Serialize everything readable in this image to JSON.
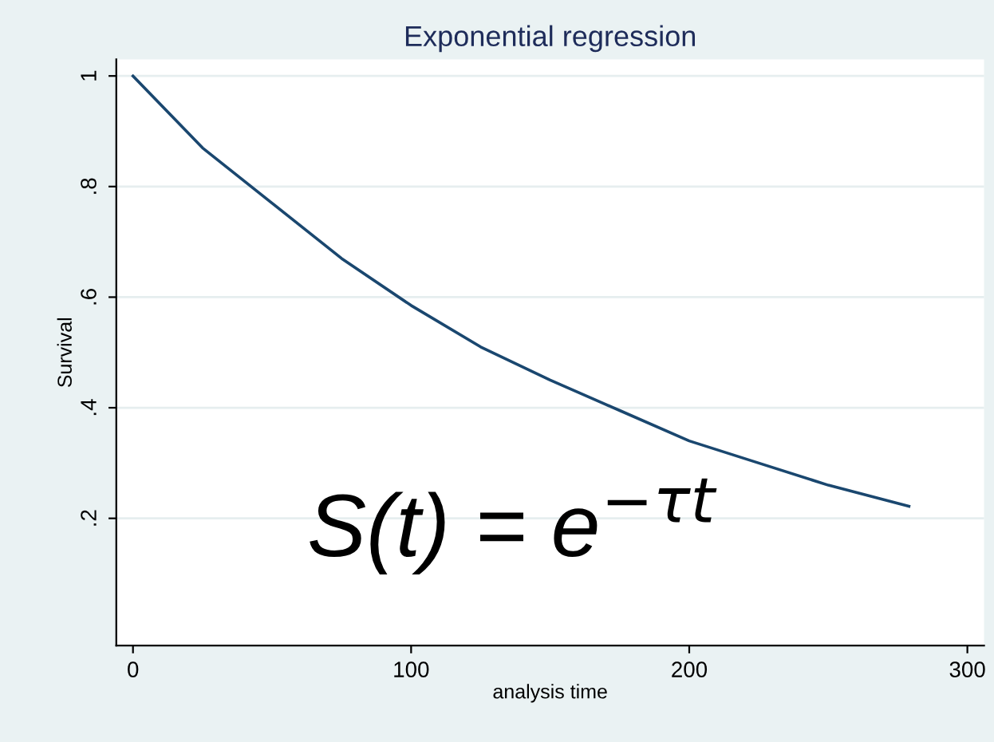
{
  "chart_data": {
    "type": "line",
    "title": "Exponential regression",
    "xlabel": "analysis time",
    "ylabel": "Survival",
    "x": [
      0,
      25,
      50,
      75,
      100,
      125,
      150,
      175,
      200,
      225,
      250,
      279
    ],
    "series": [
      {
        "color": "#1a476f",
        "values": [
          1.0,
          0.87,
          0.77,
          0.67,
          0.585,
          0.51,
          0.45,
          0.395,
          0.34,
          0.3,
          0.26,
          0.222
        ]
      }
    ],
    "xlim": [
      -6,
      306
    ],
    "xticks": [
      0,
      100,
      200,
      300
    ],
    "ylim": [
      -0.03,
      1.03
    ],
    "yticks": [
      {
        "value": 0.2,
        "label": ".2"
      },
      {
        "value": 0.4,
        "label": ".4"
      },
      {
        "value": 0.6,
        "label": ".6"
      },
      {
        "value": 0.8,
        "label": ".8"
      },
      {
        "value": 1,
        "label": "1"
      }
    ],
    "grid": "y",
    "marker": "none",
    "line_style": "solid",
    "annotations": [
      "S(t) = e$^{−τt}$"
    ]
  }
}
